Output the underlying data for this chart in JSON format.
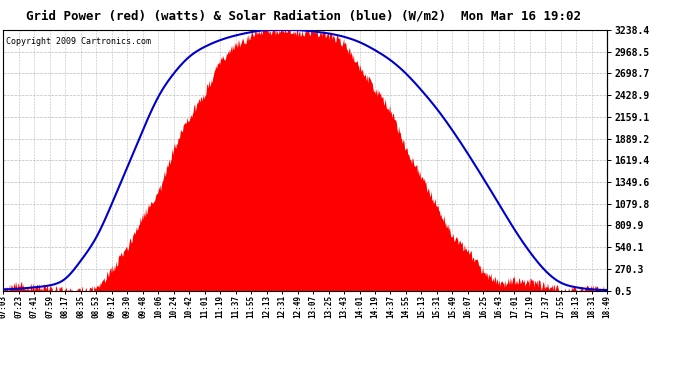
{
  "title": "Grid Power (red) (watts) & Solar Radiation (blue) (W/m2)  Mon Mar 16 19:02",
  "copyright": "Copyright 2009 Cartronics.com",
  "yticks": [
    0.5,
    270.3,
    540.1,
    809.9,
    1079.8,
    1349.6,
    1619.4,
    1889.2,
    2159.1,
    2428.9,
    2698.7,
    2968.5,
    3238.4
  ],
  "ymin": 0.5,
  "ymax": 3238.4,
  "bg_color": "#ffffff",
  "plot_bg_color": "#ffffff",
  "grid_color": "#bbbbbb",
  "red_color": "#ff0000",
  "blue_color": "#0000cc",
  "xtick_labels": [
    "07:03",
    "07:23",
    "07:41",
    "07:59",
    "08:17",
    "08:35",
    "08:53",
    "09:12",
    "09:30",
    "09:48",
    "10:06",
    "10:24",
    "10:42",
    "11:01",
    "11:19",
    "11:37",
    "11:55",
    "12:13",
    "12:31",
    "12:49",
    "13:07",
    "13:25",
    "13:43",
    "14:01",
    "14:19",
    "14:37",
    "14:55",
    "15:13",
    "15:31",
    "15:49",
    "16:07",
    "16:25",
    "16:43",
    "17:01",
    "17:19",
    "17:37",
    "17:55",
    "18:13",
    "18:31",
    "18:49"
  ],
  "red_data": [
    2,
    2,
    3,
    4,
    10,
    50,
    90,
    200,
    520,
    900,
    1280,
    1700,
    2100,
    2500,
    2900,
    3100,
    3200,
    3238,
    3238,
    3238,
    3200,
    3238,
    3100,
    2800,
    2500,
    2200,
    1800,
    1400,
    1050,
    750,
    480,
    290,
    150,
    60,
    20,
    8,
    3,
    2,
    1,
    0
  ],
  "red_noise_seed": 42,
  "red_noise_scale": 80,
  "blue_data": [
    2,
    3,
    5,
    8,
    18,
    45,
    80,
    130,
    185,
    240,
    290,
    325,
    350,
    365,
    375,
    382,
    387,
    390,
    390,
    390,
    388,
    385,
    380,
    372,
    360,
    345,
    325,
    300,
    272,
    240,
    205,
    168,
    130,
    92,
    58,
    30,
    12,
    5,
    2,
    1
  ],
  "blue_scale": 8.3,
  "title_fontsize": 9,
  "copyright_fontsize": 6,
  "tick_fontsize": 5.5
}
